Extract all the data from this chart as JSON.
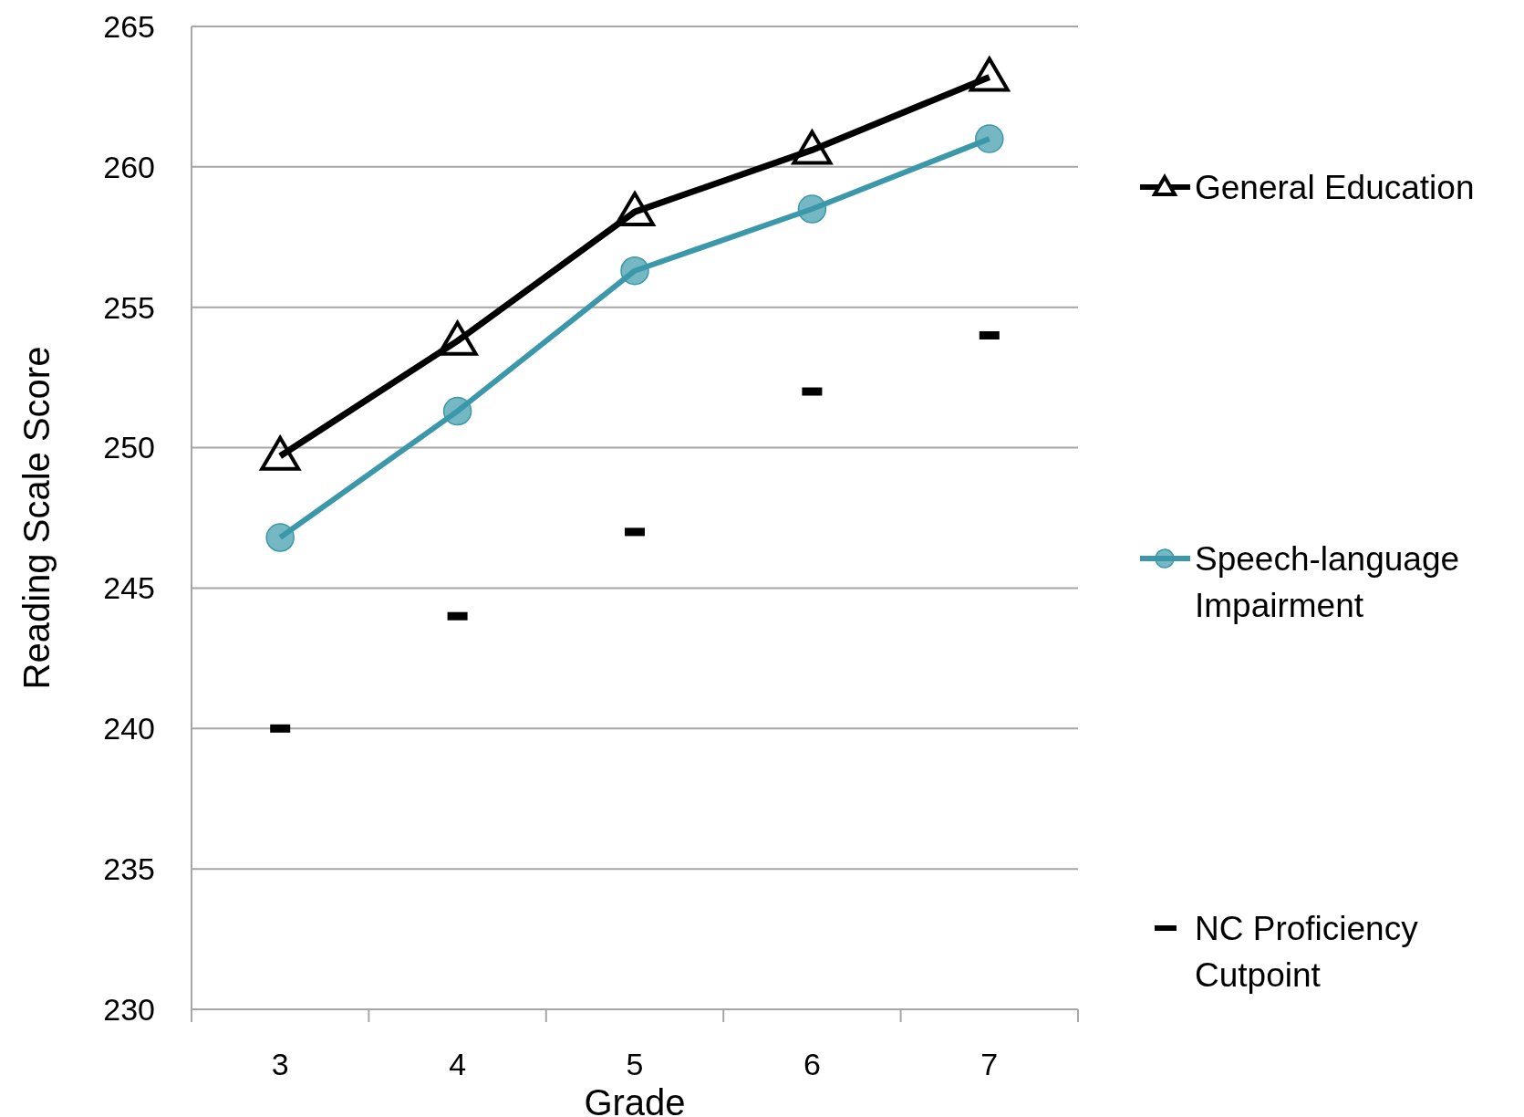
{
  "chart_data": {
    "type": "line",
    "xlabel": "Grade",
    "ylabel": "Reading Scale Score",
    "categories": [
      "3",
      "4",
      "5",
      "6",
      "7"
    ],
    "series": [
      {
        "name": "General Education",
        "color": "#000000",
        "marker": "triangle",
        "values": [
          249.7,
          253.8,
          258.4,
          260.6,
          263.2
        ]
      },
      {
        "name": "Speech-language Impairment",
        "color": "#3a98aa",
        "marker": "circle",
        "values": [
          246.8,
          251.3,
          256.3,
          258.5,
          261.0
        ]
      },
      {
        "name": "NC Proficiency Cutpoint",
        "type": "scatter",
        "color": "#000000",
        "marker": "square",
        "values": [
          240,
          244,
          247,
          252,
          254
        ]
      }
    ],
    "ylim": [
      230,
      265
    ],
    "yticks": [
      230,
      235,
      240,
      245,
      250,
      255,
      260,
      265
    ],
    "grid": "y",
    "legend": "right"
  }
}
